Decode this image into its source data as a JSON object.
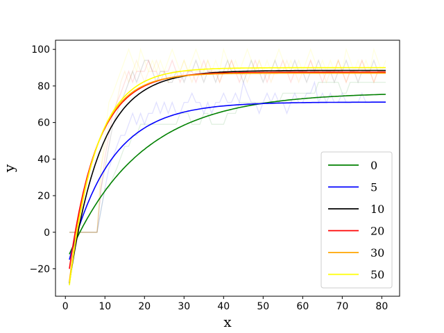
{
  "chart_data": {
    "type": "line",
    "title": "",
    "xlabel": "x",
    "ylabel": "y",
    "xlim": [
      -2.5,
      84.5
    ],
    "ylim": [
      -35,
      105
    ],
    "xticks": [
      0,
      10,
      20,
      30,
      40,
      50,
      60,
      70,
      80
    ],
    "yticks": [
      -20,
      0,
      20,
      40,
      60,
      80,
      100
    ],
    "grid": false,
    "legend_position": "lower-right",
    "fits": [
      {
        "name": "0",
        "color": "#008000",
        "asymptote": 76.5,
        "rate": 0.055,
        "x_start": 1,
        "y_start": -12
      },
      {
        "name": "5",
        "color": "#0000ff",
        "asymptote": 71.2,
        "rate": 0.095,
        "x_start": 1,
        "y_start": -15
      },
      {
        "name": "10",
        "color": "#000000",
        "asymptote": 88.5,
        "rate": 0.125,
        "x_start": 1,
        "y_start": -28
      },
      {
        "name": "20",
        "color": "#ff0000",
        "asymptote": 87.5,
        "rate": 0.14,
        "x_start": 1,
        "y_start": -20
      },
      {
        "name": "30",
        "color": "#ffa500",
        "asymptote": 87.0,
        "rate": 0.15,
        "x_start": 1,
        "y_start": -27
      },
      {
        "name": "50",
        "color": "#ffff00",
        "asymptote": 90.0,
        "rate": 0.145,
        "x_start": 1,
        "y_start": -29
      }
    ],
    "raw_series": [
      {
        "name": "0",
        "color": "#008000",
        "x": [
          1,
          2,
          3,
          4,
          5,
          6,
          7,
          8,
          9,
          10,
          11,
          12,
          13,
          14,
          15,
          16,
          17,
          18,
          19,
          20,
          21,
          22,
          23,
          24,
          25,
          26,
          27,
          28,
          29,
          30,
          31,
          32,
          33,
          34,
          35,
          36,
          37,
          38,
          39,
          40,
          41,
          42,
          43,
          44,
          45,
          46,
          47,
          48,
          49,
          50,
          51,
          52,
          53,
          54,
          55,
          56,
          57,
          58,
          59,
          60,
          61,
          62,
          63,
          64,
          65,
          66,
          67,
          68,
          69,
          70,
          71,
          72,
          73,
          74,
          75,
          76,
          77,
          78,
          79,
          80,
          81
        ],
        "y": [
          0,
          0,
          0,
          0,
          0,
          0,
          0,
          0,
          12,
          24,
          24,
          30,
          35,
          41,
          47,
          47,
          53,
          53,
          59,
          59,
          59,
          59,
          59,
          59,
          59,
          59,
          59,
          59,
          65,
          65,
          65,
          59,
          59,
          59,
          65,
          65,
          59,
          59,
          59,
          59,
          65,
          65,
          65,
          71,
          71,
          71,
          71,
          71,
          71,
          71,
          71,
          71,
          71,
          71,
          76,
          76,
          76,
          76,
          76,
          76,
          76,
          76,
          76,
          82,
          82,
          82,
          82,
          82,
          82,
          76,
          76,
          82,
          82,
          82,
          82,
          82,
          82,
          82,
          82,
          82,
          82
        ]
      },
      {
        "name": "5",
        "color": "#0000ff",
        "x": [
          1,
          2,
          3,
          4,
          5,
          6,
          7,
          8,
          9,
          10,
          11,
          12,
          13,
          14,
          15,
          16,
          17,
          18,
          19,
          20,
          21,
          22,
          23,
          24,
          25,
          26,
          27,
          28,
          29,
          30,
          31,
          32,
          33,
          34,
          35,
          36,
          37,
          38,
          39,
          40,
          41,
          42,
          43,
          44,
          45,
          46,
          47,
          48,
          49,
          50,
          51,
          52,
          53,
          54,
          55,
          56,
          57,
          58,
          59,
          60,
          61,
          62,
          63,
          64,
          65,
          66,
          67,
          68,
          69,
          70,
          71,
          72,
          73,
          74,
          75,
          76,
          77,
          78,
          79,
          80,
          81
        ],
        "y": [
          0,
          0,
          0,
          0,
          0,
          0,
          0,
          0,
          12,
          24,
          35,
          41,
          47,
          53,
          53,
          59,
          65,
          59,
          65,
          59,
          65,
          65,
          71,
          65,
          71,
          65,
          71,
          65,
          65,
          71,
          71,
          76,
          71,
          71,
          65,
          71,
          65,
          71,
          71,
          76,
          71,
          71,
          76,
          71,
          82,
          76,
          71,
          71,
          65,
          71,
          76,
          71,
          76,
          71,
          71,
          65,
          71,
          76,
          71,
          71,
          76,
          76,
          82,
          71,
          76,
          71,
          76,
          71,
          71,
          76,
          71,
          71,
          71,
          71,
          76,
          71,
          71,
          71,
          71,
          71,
          71
        ]
      },
      {
        "name": "10",
        "color": "#000000",
        "x": [
          1,
          2,
          3,
          4,
          5,
          6,
          7,
          8,
          9,
          10,
          11,
          12,
          13,
          14,
          15,
          16,
          17,
          18,
          19,
          20,
          21,
          22,
          23,
          24,
          25,
          26,
          27,
          28,
          29,
          30,
          31,
          32,
          33,
          34,
          35,
          36,
          37,
          38,
          39,
          40,
          41,
          42,
          43,
          44,
          45,
          46,
          47,
          48,
          49,
          50,
          51,
          52,
          53,
          54,
          55,
          56,
          57,
          58,
          59,
          60,
          61,
          62,
          63,
          64,
          65,
          66,
          67,
          68,
          69,
          70,
          71,
          72,
          73,
          74,
          75,
          76,
          77,
          78,
          79,
          80,
          81
        ],
        "y": [
          0,
          0,
          0,
          0,
          0,
          0,
          0,
          0,
          24,
          35,
          47,
          59,
          65,
          71,
          76,
          82,
          88,
          82,
          88,
          94,
          94,
          88,
          82,
          88,
          88,
          82,
          82,
          88,
          88,
          82,
          88,
          88,
          94,
          88,
          82,
          88,
          88,
          82,
          88,
          88,
          94,
          88,
          88,
          88,
          82,
          88,
          94,
          88,
          88,
          82,
          88,
          88,
          94,
          88,
          88,
          88,
          88,
          94,
          88,
          88,
          82,
          88,
          88,
          94,
          88,
          88,
          88,
          82,
          88,
          88,
          94,
          88,
          88,
          82,
          88,
          88,
          88,
          94,
          88,
          88,
          88
        ]
      },
      {
        "name": "20",
        "color": "#ff0000",
        "x": [
          1,
          2,
          3,
          4,
          5,
          6,
          7,
          8,
          9,
          10,
          11,
          12,
          13,
          14,
          15,
          16,
          17,
          18,
          19,
          20,
          21,
          22,
          23,
          24,
          25,
          26,
          27,
          28,
          29,
          30,
          31,
          32,
          33,
          34,
          35,
          36,
          37,
          38,
          39,
          40,
          41,
          42,
          43,
          44,
          45,
          46,
          47,
          48,
          49,
          50,
          51,
          52,
          53,
          54,
          55,
          56,
          57,
          58,
          59,
          60,
          61,
          62,
          63,
          64,
          65,
          66,
          67,
          68,
          69,
          70,
          71,
          72,
          73,
          74,
          75,
          76,
          77,
          78,
          79,
          80,
          81
        ],
        "y": [
          0,
          0,
          0,
          0,
          0,
          0,
          0,
          0,
          24,
          41,
          53,
          65,
          71,
          76,
          82,
          88,
          82,
          88,
          88,
          88,
          94,
          88,
          88,
          82,
          88,
          88,
          94,
          88,
          82,
          88,
          88,
          88,
          82,
          88,
          94,
          88,
          88,
          88,
          82,
          88,
          88,
          94,
          88,
          82,
          88,
          88,
          88,
          94,
          88,
          88,
          82,
          88,
          88,
          88,
          94,
          88,
          82,
          88,
          88,
          88,
          88,
          94,
          88,
          88,
          82,
          88,
          88,
          88,
          94,
          88,
          82,
          88,
          88,
          88,
          94,
          88,
          88,
          82,
          88,
          88,
          88
        ]
      },
      {
        "name": "30",
        "color": "#ffa500",
        "x": [
          1,
          2,
          3,
          4,
          5,
          6,
          7,
          8,
          9,
          10,
          11,
          12,
          13,
          14,
          15,
          16,
          17,
          18,
          19,
          20,
          21,
          22,
          23,
          24,
          25,
          26,
          27,
          28,
          29,
          30,
          31,
          32,
          33,
          34,
          35,
          36,
          37,
          38,
          39,
          40,
          41,
          42,
          43,
          44,
          45,
          46,
          47,
          48,
          49,
          50,
          51,
          52,
          53,
          54,
          55,
          56,
          57,
          58,
          59,
          60,
          61,
          62,
          63,
          64,
          65,
          66,
          67,
          68,
          69,
          70,
          71,
          72,
          73,
          74,
          75,
          76,
          77,
          78,
          79,
          80,
          81
        ],
        "y": [
          0,
          0,
          0,
          0,
          0,
          0,
          0,
          0,
          35,
          47,
          59,
          65,
          71,
          82,
          88,
          82,
          88,
          94,
          88,
          82,
          88,
          88,
          94,
          88,
          88,
          82,
          88,
          88,
          88,
          94,
          88,
          82,
          88,
          88,
          88,
          94,
          88,
          88,
          82,
          88,
          88,
          94,
          88,
          88,
          88,
          82,
          88,
          88,
          94,
          88,
          88,
          82,
          88,
          88,
          88,
          94,
          88,
          88,
          82,
          88,
          88,
          94,
          88,
          88,
          88,
          82,
          88,
          88,
          94,
          88,
          82,
          88,
          88,
          88,
          94,
          88,
          88,
          82,
          88,
          88,
          88
        ]
      },
      {
        "name": "50",
        "color": "#ffff00",
        "x": [
          1,
          2,
          3,
          4,
          5,
          6,
          7,
          8,
          9,
          10,
          11,
          12,
          13,
          14,
          15,
          16,
          17,
          18,
          19,
          20,
          21,
          22,
          23,
          24,
          25,
          26,
          27,
          28,
          29,
          30,
          31,
          32,
          33,
          34,
          35,
          36,
          37,
          38,
          39,
          40,
          41,
          42,
          43,
          44,
          45,
          46,
          47,
          48,
          49,
          50,
          51,
          52,
          53,
          54,
          55,
          56,
          57,
          58,
          59,
          60,
          61,
          62,
          63,
          64,
          65,
          66,
          67,
          68,
          69,
          70,
          71,
          72,
          73,
          74,
          75,
          76,
          77,
          78,
          79,
          80,
          81
        ],
        "y": [
          0,
          0,
          0,
          0,
          0,
          0,
          0,
          0,
          35,
          53,
          71,
          76,
          82,
          88,
          94,
          100,
          94,
          88,
          100,
          94,
          88,
          94,
          88,
          94,
          88,
          94,
          100,
          94,
          88,
          94,
          88,
          94,
          100,
          94,
          88,
          94,
          88,
          94,
          88,
          100,
          94,
          88,
          94,
          88,
          94,
          100,
          94,
          88,
          94,
          88,
          94,
          88,
          94,
          100,
          94,
          88,
          94,
          88,
          94,
          88,
          94,
          100,
          94,
          88,
          94,
          88,
          94,
          88,
          94,
          88,
          100,
          94,
          88,
          94,
          88,
          94,
          88,
          100,
          94,
          88,
          94
        ]
      }
    ]
  }
}
